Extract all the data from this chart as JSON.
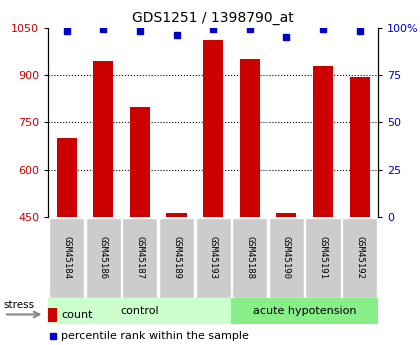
{
  "title": "GDS1251 / 1398790_at",
  "samples": [
    "GSM45184",
    "GSM45186",
    "GSM45187",
    "GSM45189",
    "GSM45193",
    "GSM45188",
    "GSM45190",
    "GSM45191",
    "GSM45192"
  ],
  "counts": [
    700,
    945,
    800,
    463,
    1010,
    950,
    463,
    928,
    895
  ],
  "percentiles": [
    98,
    99,
    98,
    96,
    99,
    99,
    95,
    99,
    98
  ],
  "ylim_left": [
    450,
    1050
  ],
  "ylim_right": [
    0,
    100
  ],
  "yticks_left": [
    450,
    600,
    750,
    900,
    1050
  ],
  "yticks_right": [
    0,
    25,
    50,
    75,
    100
  ],
  "ytick_labels_right": [
    "0",
    "25",
    "50",
    "75",
    "100%"
  ],
  "bar_color": "#cc0000",
  "dot_color": "#0000cc",
  "group_colors": [
    "#ccffcc",
    "#88ee88"
  ],
  "group_labels": [
    "control",
    "acute hypotension"
  ],
  "n_control": 5,
  "n_acute": 4,
  "stress_label": "stress",
  "legend_count_label": "count",
  "legend_pct_label": "percentile rank within the sample",
  "title_color": "#000000",
  "left_axis_color": "#cc0000",
  "right_axis_color": "#0000cc",
  "sample_box_color": "#cccccc",
  "bg_color": "#ffffff"
}
